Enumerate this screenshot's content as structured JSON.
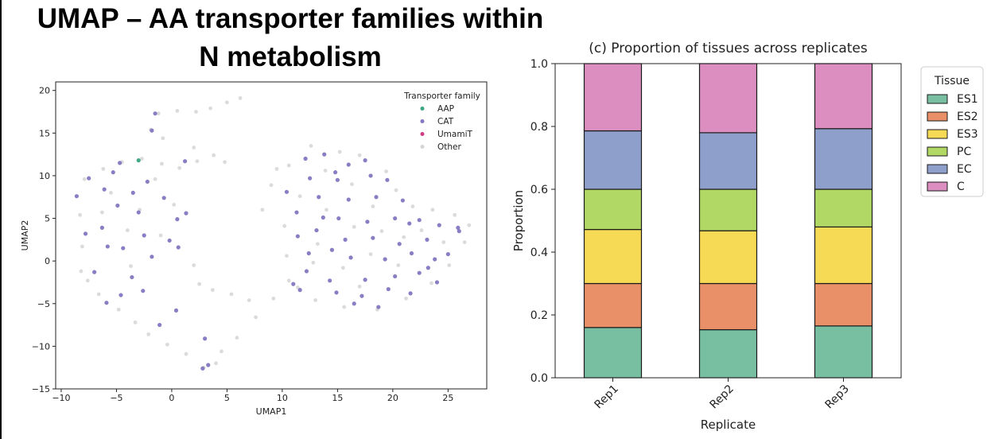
{
  "slide": {
    "title_line1": "UMAP – AA transporter families within",
    "title_line2": "N metabolism"
  },
  "chart_data": [
    {
      "type": "scatter",
      "title": "",
      "xlabel": "UMAP1",
      "ylabel": "UMAP2",
      "xlim": [
        -10.5,
        28.5
      ],
      "ylim": [
        -15,
        21
      ],
      "xticks": [
        -10,
        -5,
        0,
        5,
        10,
        15,
        20,
        25
      ],
      "yticks": [
        -15,
        -10,
        -5,
        0,
        5,
        10,
        15,
        20
      ],
      "legend_title": "Transporter family",
      "legend_position": "top-right",
      "series": [
        {
          "name": "AAP",
          "color": "#3aa57f",
          "points": [
            [
              -3.0,
              11.8
            ]
          ]
        },
        {
          "name": "CAT",
          "color": "#8277c0",
          "points": [
            [
              -1.5,
              17.3
            ],
            [
              -1.8,
              15.3
            ],
            [
              1.2,
              11.7
            ],
            [
              -4.7,
              11.5
            ],
            [
              -5.3,
              10.4
            ],
            [
              -7.5,
              9.7
            ],
            [
              -6.1,
              8.4
            ],
            [
              -8.6,
              7.6
            ],
            [
              -3.5,
              8.0
            ],
            [
              -2.2,
              9.3
            ],
            [
              -0.7,
              7.4
            ],
            [
              -4.9,
              6.5
            ],
            [
              -3.0,
              5.7
            ],
            [
              -7.8,
              3.2
            ],
            [
              -6.3,
              3.9
            ],
            [
              -2.5,
              3.0
            ],
            [
              -0.2,
              2.4
            ],
            [
              -5.8,
              1.7
            ],
            [
              -4.4,
              1.5
            ],
            [
              -1.8,
              0.5
            ],
            [
              0.6,
              1.6
            ],
            [
              -7.0,
              -1.3
            ],
            [
              -3.6,
              -1.9
            ],
            [
              0.5,
              4.9
            ],
            [
              1.3,
              5.6
            ],
            [
              -5.9,
              -4.9
            ],
            [
              -2.6,
              -3.5
            ],
            [
              -1.1,
              -7.5
            ],
            [
              3.0,
              -9.1
            ],
            [
              3.3,
              -12.2
            ],
            [
              2.8,
              -12.6
            ],
            [
              -4.6,
              -4.0
            ],
            [
              0.4,
              -5.8
            ],
            [
              12.1,
              12.0
            ],
            [
              13.8,
              12.5
            ],
            [
              16.0,
              11.3
            ],
            [
              17.5,
              11.8
            ],
            [
              19.5,
              9.5
            ],
            [
              12.5,
              9.7
            ],
            [
              15.0,
              9.5
            ],
            [
              10.4,
              8.1
            ],
            [
              13.3,
              7.5
            ],
            [
              16.0,
              7.2
            ],
            [
              18.5,
              7.5
            ],
            [
              20.9,
              7.1
            ],
            [
              11.3,
              5.7
            ],
            [
              13.7,
              5.1
            ],
            [
              15.1,
              5.0
            ],
            [
              17.7,
              4.6
            ],
            [
              20.2,
              5.0
            ],
            [
              22.4,
              4.8
            ],
            [
              24.2,
              4.2
            ],
            [
              25.9,
              3.9
            ],
            [
              11.4,
              2.9
            ],
            [
              13.1,
              3.6
            ],
            [
              15.7,
              2.5
            ],
            [
              18.2,
              2.7
            ],
            [
              20.6,
              2.0
            ],
            [
              23.1,
              2.5
            ],
            [
              26.0,
              3.5
            ],
            [
              12.4,
              0.9
            ],
            [
              14.5,
              1.3
            ],
            [
              16.2,
              0.4
            ],
            [
              19.3,
              0.2
            ],
            [
              21.7,
              0.9
            ],
            [
              23.8,
              0.2
            ],
            [
              12.2,
              -1.2
            ],
            [
              14.3,
              -2.3
            ],
            [
              17.5,
              -2.2
            ],
            [
              20.2,
              -1.8
            ],
            [
              22.4,
              -1.4
            ],
            [
              24.0,
              -2.5
            ],
            [
              11.6,
              -3.4
            ],
            [
              14.9,
              -3.7
            ],
            [
              17.2,
              -4.1
            ],
            [
              19.6,
              -3.3
            ],
            [
              21.6,
              -3.8
            ],
            [
              16.5,
              -5.0
            ],
            [
              18.7,
              -5.4
            ],
            [
              11.0,
              -2.7
            ],
            [
              25.0,
              0.8
            ],
            [
              14.8,
              10.4
            ],
            [
              18.0,
              10.0
            ],
            [
              21.5,
              4.4
            ],
            [
              23.2,
              -0.8
            ]
          ]
        },
        {
          "name": "UmamiT",
          "color": "#d13b83",
          "points": []
        },
        {
          "name": "Other",
          "color": "#d5d5d5",
          "points": [
            [
              -8.2,
              -1.2
            ],
            [
              -7.9,
              9.6
            ],
            [
              -6.2,
              10.8
            ],
            [
              -4.5,
              11.6
            ],
            [
              -2.7,
              12.0
            ],
            [
              -0.9,
              11.4
            ],
            [
              0.7,
              10.9
            ],
            [
              2.3,
              11.7
            ],
            [
              3.8,
              12.4
            ],
            [
              4.8,
              11.6
            ],
            [
              2.0,
              13.3
            ],
            [
              -0.8,
              14.4
            ],
            [
              -1.9,
              15.4
            ],
            [
              -1.2,
              17.3
            ],
            [
              0.5,
              17.6
            ],
            [
              2.2,
              17.5
            ],
            [
              3.5,
              17.9
            ],
            [
              5.0,
              18.6
            ],
            [
              6.2,
              19.1
            ],
            [
              -8.3,
              5.4
            ],
            [
              -8.1,
              1.7
            ],
            [
              -7.6,
              -2.3
            ],
            [
              -6.6,
              -3.9
            ],
            [
              -4.8,
              -5.7
            ],
            [
              -3.3,
              -7.2
            ],
            [
              -2.1,
              -8.6
            ],
            [
              -0.4,
              -9.8
            ],
            [
              1.3,
              -10.9
            ],
            [
              2.9,
              -12.5
            ],
            [
              4.0,
              -12.0
            ],
            [
              4.5,
              -10.6
            ],
            [
              5.9,
              -9.0
            ],
            [
              7.6,
              -6.6
            ],
            [
              9.2,
              -4.4
            ],
            [
              10.6,
              -2.3
            ],
            [
              2.5,
              -2.7
            ],
            [
              3.7,
              -3.4
            ],
            [
              5.4,
              -3.9
            ],
            [
              7.0,
              -4.6
            ],
            [
              2.0,
              -0.5
            ],
            [
              -1.0,
              3.0
            ],
            [
              -2.9,
              6.0
            ],
            [
              -4.0,
              3.6
            ],
            [
              -5.5,
              8.0
            ],
            [
              -1.5,
              9.6
            ],
            [
              0.2,
              6.6
            ],
            [
              -3.7,
              -0.6
            ],
            [
              -6.3,
              5.7
            ],
            [
              10.6,
              11.2
            ],
            [
              12.6,
              13.5
            ],
            [
              15.2,
              12.8
            ],
            [
              17.0,
              12.4
            ],
            [
              19.4,
              10.5
            ],
            [
              20.3,
              8.3
            ],
            [
              21.8,
              6.4
            ],
            [
              23.6,
              6.0
            ],
            [
              25.6,
              5.4
            ],
            [
              26.9,
              4.2
            ],
            [
              26.5,
              2.2
            ],
            [
              25.1,
              -0.5
            ],
            [
              23.5,
              -2.6
            ],
            [
              21.2,
              -4.4
            ],
            [
              18.6,
              -5.7
            ],
            [
              15.6,
              -5.4
            ],
            [
              13.0,
              -4.6
            ],
            [
              11.4,
              -3.1
            ],
            [
              10.4,
              0.6
            ],
            [
              10.2,
              4.1
            ],
            [
              11.6,
              7.6
            ],
            [
              13.9,
              10.6
            ],
            [
              16.3,
              9.0
            ],
            [
              18.2,
              6.4
            ],
            [
              14.0,
              6.0
            ],
            [
              16.5,
              4.0
            ],
            [
              19.0,
              3.5
            ],
            [
              21.0,
              2.8
            ],
            [
              13.2,
              2.0
            ],
            [
              15.5,
              -0.8
            ],
            [
              18.0,
              0.8
            ],
            [
              20.5,
              -0.5
            ],
            [
              22.6,
              3.6
            ],
            [
              24.6,
              2.2
            ],
            [
              17.0,
              -3.0
            ],
            [
              12.8,
              -0.2
            ],
            [
              9.5,
              10.8
            ],
            [
              9.0,
              8.9
            ],
            [
              8.2,
              6.0
            ]
          ]
        }
      ]
    },
    {
      "type": "bar",
      "stacked": true,
      "title": "(c) Proportion of tissues across replicates",
      "xlabel": "Replicate",
      "ylabel": "Proportion",
      "ylim": [
        0,
        1.0
      ],
      "yticks": [
        "0.0",
        "0.2",
        "0.4",
        "0.6",
        "0.8",
        "1.0"
      ],
      "categories": [
        "Rep1",
        "Rep2",
        "Rep3"
      ],
      "legend_title": "Tissue",
      "legend_position": "outside right",
      "series": [
        {
          "name": "ES1",
          "color": "#78bfa2",
          "values": [
            0.16,
            0.153,
            0.165
          ]
        },
        {
          "name": "ES2",
          "color": "#ea9068",
          "values": [
            0.14,
            0.147,
            0.135
          ]
        },
        {
          "name": "ES3",
          "color": "#f6da55",
          "values": [
            0.172,
            0.168,
            0.18
          ]
        },
        {
          "name": "PC",
          "color": "#b1d765",
          "values": [
            0.128,
            0.132,
            0.12
          ]
        },
        {
          "name": "EC",
          "color": "#8f9fcb",
          "values": [
            0.186,
            0.18,
            0.193
          ]
        },
        {
          "name": "C",
          "color": "#db8ebf",
          "values": [
            0.214,
            0.22,
            0.207
          ]
        }
      ]
    }
  ]
}
